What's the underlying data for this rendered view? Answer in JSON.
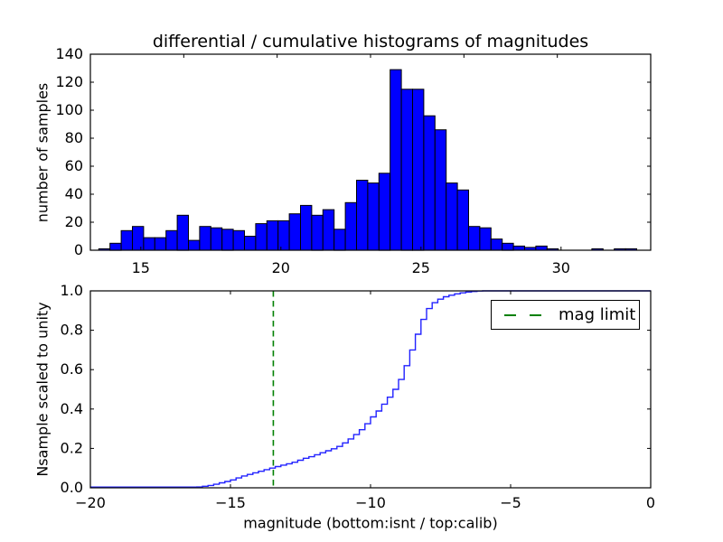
{
  "figure_bg": "#ffffff",
  "chart_data": [
    {
      "type": "bar",
      "role": "differential-histogram-of-magnitudes",
      "title": "differential / cumulative histograms of magnitudes",
      "ylabel": "number of samples",
      "xlim": [
        13.2,
        33.2
      ],
      "ylim": [
        0,
        140
      ],
      "grid": false,
      "bin_start": 13.5,
      "bin_width": 0.4,
      "values": [
        1,
        5,
        14,
        17,
        9,
        9,
        14,
        25,
        7,
        17,
        16,
        15,
        14,
        10,
        19,
        21,
        21,
        26,
        32,
        25,
        29,
        15,
        34,
        50,
        48,
        55,
        129,
        115,
        115,
        96,
        86,
        48,
        43,
        17,
        16,
        8,
        5,
        3,
        2,
        3,
        1,
        0,
        0,
        0,
        1,
        0,
        1,
        1,
        0,
        0
      ],
      "xtick_values": [
        15,
        20,
        25,
        30
      ],
      "xtick_labels": [
        "15",
        "20",
        "25",
        "30"
      ],
      "ytick_values": [
        0,
        20,
        40,
        60,
        80,
        100,
        120,
        140
      ],
      "ytick_labels": [
        "0",
        "20",
        "40",
        "60",
        "80",
        "100",
        "120",
        "140"
      ],
      "top_axis": {
        "range": [
          10,
          40
        ],
        "tick_values": [
          15,
          20,
          25,
          30,
          35
        ]
      },
      "bar_color": "#0000ff",
      "bar_edge_color": "#000000"
    },
    {
      "type": "line",
      "role": "cumulative-histogram-scaled",
      "ylabel": "Nsample scaled to unity",
      "xlabel": "magnitude (bottom:isnt / top:calib)",
      "xlim": [
        -20,
        0
      ],
      "ylim": [
        0.0,
        1.0
      ],
      "grid": false,
      "line_color": "#2222ff",
      "steps": [
        [
          -16.2,
          0.004
        ],
        [
          -16.0,
          0.008
        ],
        [
          -15.8,
          0.012
        ],
        [
          -15.6,
          0.018
        ],
        [
          -15.4,
          0.025
        ],
        [
          -15.2,
          0.032
        ],
        [
          -15.0,
          0.04
        ],
        [
          -14.8,
          0.05
        ],
        [
          -14.6,
          0.06
        ],
        [
          -14.4,
          0.068
        ],
        [
          -14.2,
          0.076
        ],
        [
          -14.0,
          0.084
        ],
        [
          -13.8,
          0.092
        ],
        [
          -13.6,
          0.1
        ],
        [
          -13.4,
          0.108
        ],
        [
          -13.2,
          0.115
        ],
        [
          -13.0,
          0.122
        ],
        [
          -12.8,
          0.13
        ],
        [
          -12.6,
          0.14
        ],
        [
          -12.4,
          0.15
        ],
        [
          -12.2,
          0.158
        ],
        [
          -12.0,
          0.168
        ],
        [
          -11.8,
          0.178
        ],
        [
          -11.6,
          0.188
        ],
        [
          -11.4,
          0.198
        ],
        [
          -11.2,
          0.21
        ],
        [
          -11.0,
          0.228
        ],
        [
          -10.8,
          0.248
        ],
        [
          -10.6,
          0.27
        ],
        [
          -10.4,
          0.295
        ],
        [
          -10.2,
          0.325
        ],
        [
          -10.0,
          0.36
        ],
        [
          -9.8,
          0.39
        ],
        [
          -9.6,
          0.425
        ],
        [
          -9.4,
          0.46
        ],
        [
          -9.2,
          0.5
        ],
        [
          -9.0,
          0.55
        ],
        [
          -8.8,
          0.62
        ],
        [
          -8.6,
          0.7
        ],
        [
          -8.4,
          0.78
        ],
        [
          -8.2,
          0.855
        ],
        [
          -8.0,
          0.91
        ],
        [
          -7.8,
          0.94
        ],
        [
          -7.6,
          0.958
        ],
        [
          -7.4,
          0.97
        ],
        [
          -7.2,
          0.978
        ],
        [
          -7.0,
          0.985
        ],
        [
          -6.8,
          0.99
        ],
        [
          -6.6,
          0.994
        ],
        [
          -6.4,
          0.997
        ],
        [
          -6.2,
          0.999
        ],
        [
          -6.0,
          1.0
        ]
      ],
      "xtick_values": [
        -20,
        -15,
        -10,
        -5,
        0
      ],
      "xtick_labels": [
        "−20",
        "−15",
        "−10",
        "−5",
        "0"
      ],
      "ytick_values": [
        0.0,
        0.2,
        0.4,
        0.6,
        0.8,
        1.0
      ],
      "ytick_labels": [
        "0.0",
        "0.2",
        "0.4",
        "0.6",
        "0.8",
        "1.0"
      ],
      "vline": {
        "x": -13.47,
        "color": "#008000",
        "style": "dashed",
        "label": "mag limit"
      },
      "legend": {
        "label": "mag limit",
        "position": "upper right",
        "line_color": "#008000",
        "line_style": "dashed"
      }
    }
  ]
}
